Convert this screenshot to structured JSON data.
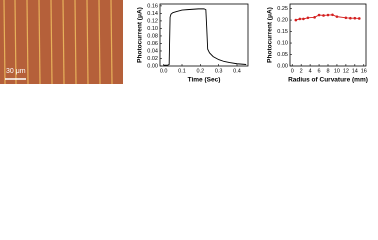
{
  "image": {
    "scale_bar": "30 μm"
  },
  "chart_data": [
    {
      "type": "line",
      "xlabel": "Time (Sec)",
      "ylabel": "Photocurrent (μA)",
      "x": [
        0,
        0.02,
        0.03,
        0.035,
        0.04,
        0.05,
        0.07,
        0.1,
        0.13,
        0.16,
        0.19,
        0.22,
        0.23,
        0.235,
        0.24,
        0.25,
        0.27,
        0.3,
        0.33,
        0.36,
        0.4,
        0.45
      ],
      "series": [
        {
          "color": "#000000",
          "values": [
            0.002,
            0.002,
            0.004,
            0.13,
            0.138,
            0.142,
            0.145,
            0.149,
            0.15,
            0.151,
            0.152,
            0.152,
            0.15,
            0.1,
            0.045,
            0.035,
            0.025,
            0.017,
            0.012,
            0.009,
            0.006,
            0.004
          ]
        }
      ],
      "xlim": [
        -0.02,
        0.46
      ],
      "xticks": [
        {
          "value": 0,
          "label": "0.0"
        },
        0.1,
        0.2,
        0.3,
        0.4
      ],
      "ylim": [
        0,
        0.165
      ],
      "yticks": [
        {
          "value": 0,
          "label": "0.00"
        },
        0.02,
        0.04,
        0.06,
        0.08,
        {
          "value": 0.1,
          "label": "0.10"
        },
        0.12,
        0.14,
        0.16
      ]
    },
    {
      "type": "line",
      "markers": true,
      "xlabel": "Radius of Curvature (mm)",
      "ylabel": "Photocurrent (μA)",
      "x": [
        0.8,
        1.7,
        2.5,
        3.5,
        5,
        6,
        7,
        8,
        9,
        10,
        12,
        13,
        14,
        15
      ],
      "series": [
        {
          "color": "#d42020",
          "values": [
            0.2,
            0.205,
            0.205,
            0.21,
            0.212,
            0.222,
            0.22,
            0.222,
            0.223,
            0.215,
            0.21,
            0.208,
            0.208,
            0.207
          ]
        }
      ],
      "xlim": [
        -0.5,
        16.5
      ],
      "xticks": [
        0,
        2,
        4,
        6,
        8,
        10,
        12,
        14,
        16
      ],
      "ylim": [
        0,
        0.27
      ],
      "yticks": [
        {
          "value": 0,
          "label": "0.00"
        },
        0.05,
        {
          "value": 0.1,
          "label": "0.10"
        },
        0.15,
        {
          "value": 0.2,
          "label": "0.20"
        },
        0.25
      ]
    }
  ]
}
